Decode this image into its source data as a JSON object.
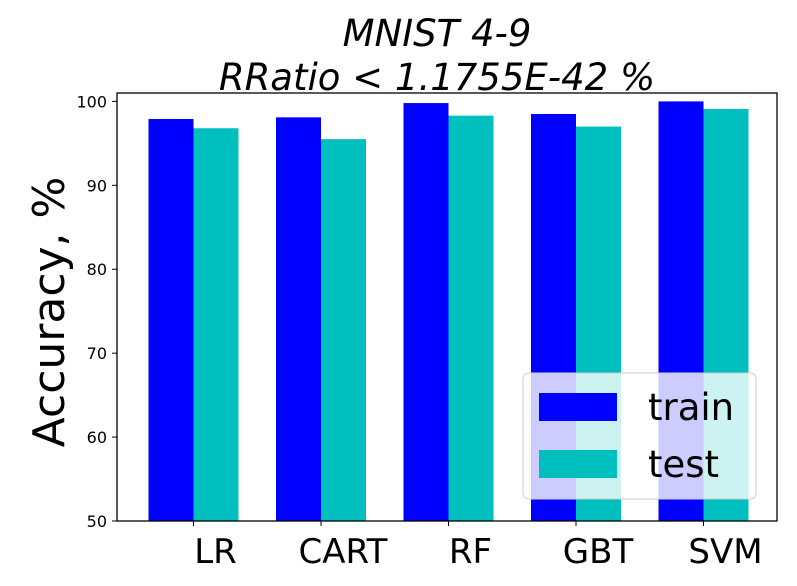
{
  "chart_data": {
    "type": "bar",
    "title_lines": [
      "MNIST 4-9",
      "RRatio < 1.1755E-42 %"
    ],
    "xlabel": "",
    "ylabel": "Accuracy, %",
    "categories": [
      "LR",
      "CART",
      "RF",
      "GBT",
      "SVM"
    ],
    "series": [
      {
        "name": "train",
        "color": "#0000ff",
        "values": [
          97.9,
          98.1,
          99.8,
          98.5,
          100.0
        ]
      },
      {
        "name": "test",
        "color": "#00bfbf",
        "values": [
          96.8,
          95.5,
          98.3,
          97.0,
          99.1
        ]
      }
    ],
    "ylim": [
      50,
      101
    ],
    "yticks": [
      50,
      60,
      70,
      80,
      90,
      100
    ],
    "grid": false,
    "legend_position": "lower-right"
  }
}
